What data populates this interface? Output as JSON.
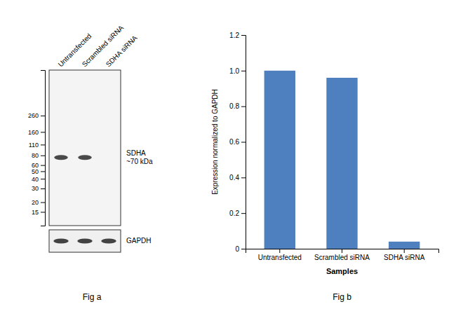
{
  "chart_data": [
    {
      "type": "blot",
      "categories": [
        "Untransfected",
        "Scrambled siRNA",
        "SDHA siRNA"
      ],
      "log": "y",
      "ylim": [
        10,
        1000
      ],
      "yticks": [
        260,
        160,
        110,
        80,
        60,
        50,
        40,
        30,
        20,
        15
      ],
      "annotations": [
        "SDHA\n~70 kDa",
        "GAPDH",
        "Fig a"
      ]
    },
    {
      "type": "bar",
      "categories": [
        "Untransfected",
        "Scrambled siRNA",
        "SDHA siRNA"
      ],
      "values": [
        1.0,
        0.96,
        0.04
      ],
      "color": "#4e7fbe",
      "ylabel": "Expression normalized to GAPDH",
      "xlabel": "Samples",
      "ylim": [
        0,
        1.2
      ],
      "yticks": [
        0,
        0.2,
        0.4,
        0.6,
        0.8,
        {
          "value": 1.0,
          "label": "1.0"
        },
        1.2
      ],
      "grid": false,
      "annotations": [
        "Fig b"
      ]
    }
  ]
}
